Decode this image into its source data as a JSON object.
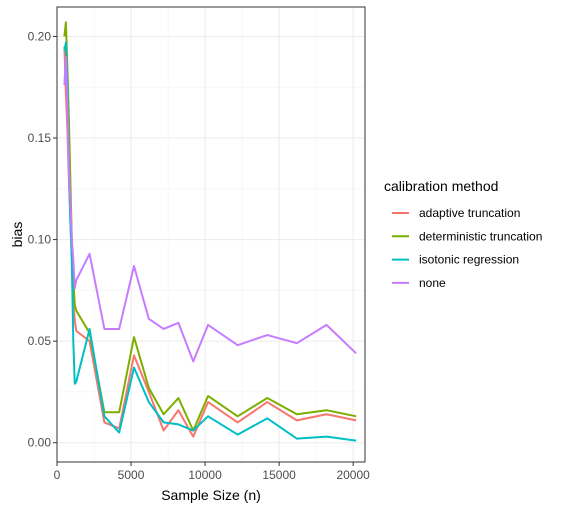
{
  "chart_data": {
    "type": "line",
    "title": "",
    "xlabel": "Sample Size (n)",
    "ylabel": "bias",
    "xlim": [
      0,
      20800
    ],
    "ylim": [
      -0.0095,
      0.2145
    ],
    "x_ticks": [
      0,
      5000,
      10000,
      15000,
      20000
    ],
    "x_tick_labels": [
      "0",
      "5000",
      "10000",
      "15000",
      "20000"
    ],
    "y_ticks": [
      0.0,
      0.05,
      0.1,
      0.15,
      0.2
    ],
    "y_tick_labels": [
      "0.00",
      "0.05",
      "0.10",
      "0.15",
      "0.20"
    ],
    "grid": true,
    "legend": {
      "title": "calibration method",
      "position": "right"
    },
    "series": [
      {
        "name": "adaptive truncation",
        "color": "#F8766D",
        "x": [
          500,
          600,
          700,
          800,
          900,
          1000,
          1100,
          1200,
          1300,
          2200,
          3200,
          4200,
          5200,
          6200,
          7200,
          8200,
          9200,
          10200,
          12200,
          14200,
          16200,
          18200,
          20200
        ],
        "y": [
          0.195,
          0.172,
          0.155,
          0.13,
          0.11,
          0.09,
          0.07,
          0.06,
          0.055,
          0.05,
          0.01,
          0.007,
          0.043,
          0.025,
          0.006,
          0.016,
          0.003,
          0.02,
          0.01,
          0.02,
          0.011,
          0.014,
          0.011
        ]
      },
      {
        "name": "deterministic truncation",
        "color": "#7CAE00",
        "x": [
          500,
          600,
          700,
          800,
          900,
          1000,
          1100,
          1200,
          1300,
          2200,
          3200,
          4200,
          5200,
          6200,
          7200,
          8200,
          9200,
          10200,
          12200,
          14200,
          16200,
          18200,
          20200
        ],
        "y": [
          0.2,
          0.207,
          0.185,
          0.16,
          0.13,
          0.1,
          0.08,
          0.068,
          0.065,
          0.054,
          0.015,
          0.015,
          0.052,
          0.027,
          0.014,
          0.022,
          0.006,
          0.023,
          0.013,
          0.022,
          0.014,
          0.016,
          0.013
        ]
      },
      {
        "name": "isotonic regression",
        "color": "#00BFC4",
        "x": [
          500,
          600,
          700,
          800,
          900,
          1000,
          1100,
          1200,
          1300,
          2200,
          3200,
          4200,
          5200,
          6200,
          7200,
          8200,
          9200,
          10200,
          12200,
          14200,
          16200,
          18200,
          20200
        ],
        "y": [
          0.193,
          0.197,
          0.175,
          0.135,
          0.11,
          0.09,
          0.05,
          0.029,
          0.03,
          0.056,
          0.013,
          0.005,
          0.037,
          0.02,
          0.01,
          0.009,
          0.006,
          0.013,
          0.004,
          0.012,
          0.002,
          0.003,
          0.001
        ]
      },
      {
        "name": "none",
        "color": "#C77CFF",
        "x": [
          500,
          600,
          700,
          800,
          900,
          1000,
          1100,
          1200,
          1300,
          2200,
          3200,
          4200,
          5200,
          6200,
          7200,
          8200,
          9200,
          10200,
          12200,
          14200,
          16200,
          18200,
          20200
        ],
        "y": [
          0.176,
          0.19,
          0.165,
          0.135,
          0.12,
          0.1,
          0.09,
          0.076,
          0.08,
          0.093,
          0.056,
          0.056,
          0.087,
          0.061,
          0.056,
          0.059,
          0.04,
          0.058,
          0.048,
          0.053,
          0.049,
          0.058,
          0.044
        ]
      }
    ]
  }
}
